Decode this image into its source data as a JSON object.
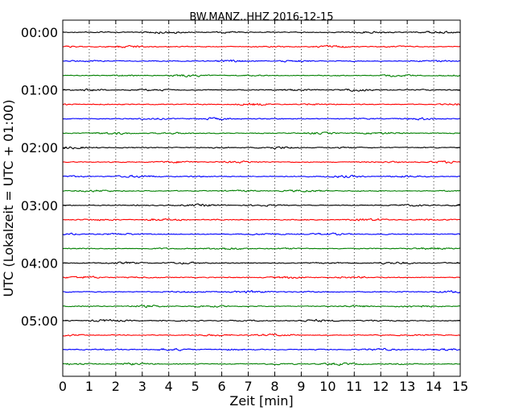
{
  "chart_data": {
    "type": "line",
    "title": "BW.MANZ..HHZ 2016-12-15",
    "xlabel": "Zeit  [min]",
    "ylabel": "UTC (Lokalzeit = UTC + 01:00)",
    "xlim": [
      0,
      15
    ],
    "x_ticks": [
      0,
      1,
      2,
      3,
      4,
      5,
      6,
      7,
      8,
      9,
      10,
      11,
      12,
      13,
      14,
      15
    ],
    "x_tick_labels": [
      "0",
      "1",
      "2",
      "3",
      "4",
      "5",
      "6",
      "7",
      "8",
      "9",
      "10",
      "11",
      "12",
      "13",
      "14",
      "15"
    ],
    "y_tick_labels": [
      "00:00",
      "01:00",
      "02:00",
      "03:00",
      "04:00",
      "05:00"
    ],
    "grid": "vertical dotted lines at each minute",
    "trace_interval_minutes": 15,
    "trace_count": 24,
    "trace_start_times": [
      "00:00",
      "00:15",
      "00:30",
      "00:45",
      "01:00",
      "01:15",
      "01:30",
      "01:45",
      "02:00",
      "02:15",
      "02:30",
      "02:45",
      "03:00",
      "03:15",
      "03:30",
      "03:45",
      "04:00",
      "04:15",
      "04:30",
      "04:45",
      "05:00",
      "05:15",
      "05:30",
      "05:45"
    ],
    "trace_colors": [
      "#000000",
      "#ff0000",
      "#0000ff",
      "#008000"
    ]
  }
}
